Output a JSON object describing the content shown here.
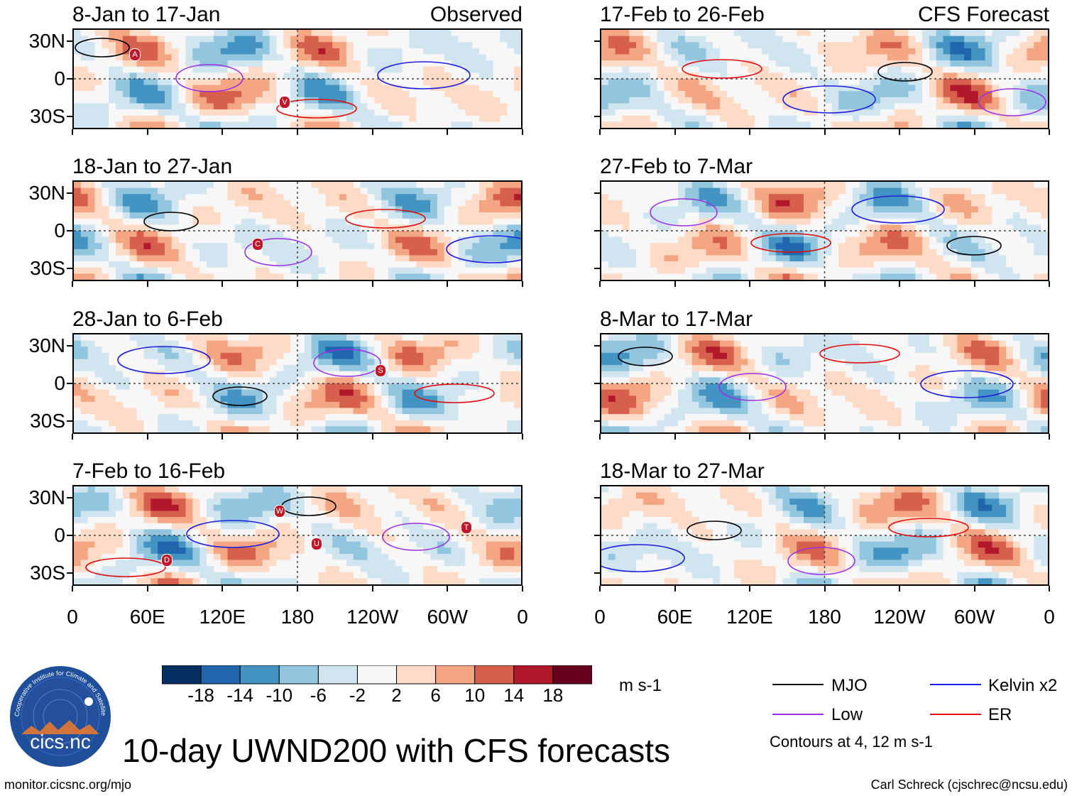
{
  "chart_data": {
    "type": "heatmap",
    "title": "10-day UWND200 with CFS forecasts",
    "variable": "200-hPa zonal wind anomaly",
    "units": "m s-1",
    "column_headers": {
      "observed": "Observed",
      "forecast": "CFS Forecast"
    },
    "x_tick_labels": [
      "0",
      "60E",
      "120E",
      "180",
      "120W",
      "60W",
      "0"
    ],
    "x_ticks_deg": [
      0,
      60,
      120,
      180,
      240,
      300,
      360
    ],
    "y_tick_labels": [
      "30N",
      "0",
      "30S"
    ],
    "y_ticks_deg": [
      30,
      0,
      -30
    ],
    "xlim": [
      0,
      360
    ],
    "ylim": [
      -40,
      40
    ],
    "panels": [
      {
        "period": "8-Jan to 17-Jan",
        "source": "Observed",
        "storm_labels": [
          "A",
          "V"
        ]
      },
      {
        "period": "18-Jan to 27-Jan",
        "source": "Observed",
        "storm_labels": [
          "C"
        ]
      },
      {
        "period": "28-Jan to 6-Feb",
        "source": "Observed",
        "storm_labels": [
          "S"
        ]
      },
      {
        "period": "7-Feb to 16-Feb",
        "source": "Observed",
        "storm_labels": [
          "D",
          "U",
          "T",
          "W"
        ]
      },
      {
        "period": "17-Feb to 26-Feb",
        "source": "CFS Forecast",
        "storm_labels": []
      },
      {
        "period": "27-Feb to 7-Mar",
        "source": "CFS Forecast",
        "storm_labels": []
      },
      {
        "period": "8-Mar to 17-Mar",
        "source": "CFS Forecast",
        "storm_labels": []
      },
      {
        "period": "18-Mar to 27-Mar",
        "source": "CFS Forecast",
        "storm_labels": []
      }
    ],
    "colorbar": {
      "tick_labels": [
        "-18",
        "-14",
        "-10",
        "-6",
        "-2",
        "2",
        "6",
        "10",
        "14",
        "18"
      ],
      "colors": [
        "#053061",
        "#2166ac",
        "#4393c3",
        "#92c5de",
        "#d1e5f0",
        "#f7f7f7",
        "#fddbc7",
        "#f4a582",
        "#d6604d",
        "#b2182b",
        "#67001f"
      ],
      "units": "m s-1"
    },
    "contour_legend": [
      {
        "label": "MJO",
        "color": "#000000"
      },
      {
        "label": "Kelvin x2",
        "color": "#1f1fdd"
      },
      {
        "label": "Low",
        "color": "#9b30e6"
      },
      {
        "label": "ER",
        "color": "#e01010"
      }
    ],
    "contour_note": "Contours at 4, 12 m s-1"
  },
  "logo": {
    "name": "cics.nc",
    "ring_text": "Cooperative Institute for Climate and Satellites"
  },
  "footer": {
    "url": "monitor.cicsnc.org/mjo",
    "credit": "Carl Schreck (cjschrec@ncsu.edu)"
  }
}
